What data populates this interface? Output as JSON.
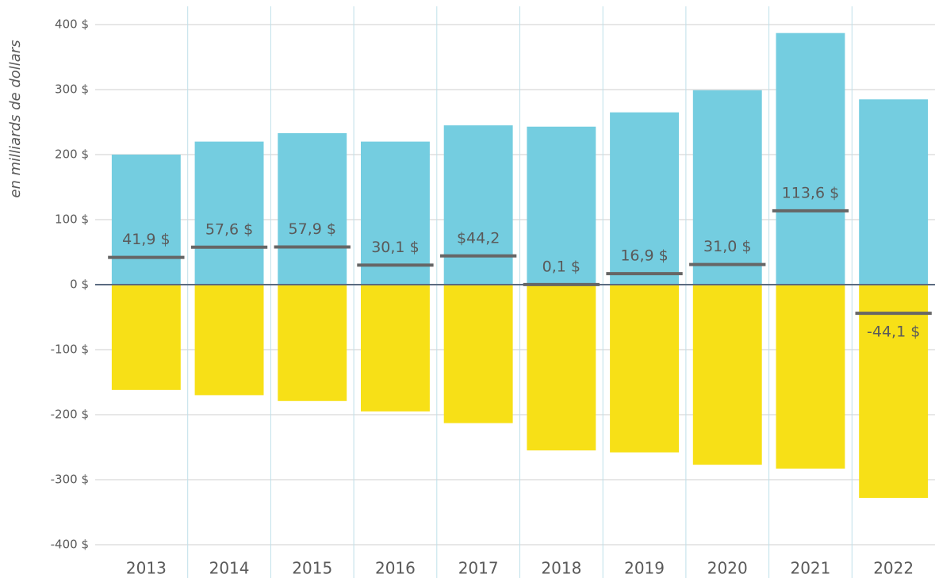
{
  "chart_data": {
    "type": "bar",
    "y_label": "en milliards de dollars",
    "categories": [
      "2013",
      "2014",
      "2015",
      "2016",
      "2017",
      "2018",
      "2019",
      "2020",
      "2021",
      "2022"
    ],
    "series": [
      {
        "color": "#74cde0",
        "values": [
          200,
          220,
          233,
          220,
          245,
          243,
          265,
          299,
          387,
          285
        ]
      },
      {
        "color": "#f7e017",
        "values": [
          -162,
          -170,
          -179,
          -195,
          -213,
          -255,
          -258,
          -277,
          -283,
          -328
        ]
      }
    ],
    "net": {
      "color": "#666666",
      "values": [
        41.9,
        57.6,
        57.9,
        30.1,
        44.2,
        0.1,
        16.9,
        31.0,
        113.6,
        -44.1
      ],
      "value_labels": [
        "41,9 $",
        "57,6 $",
        "57,9 $",
        "30,1 $",
        "$44,2",
        "0,1 $",
        "16,9 $",
        "31,0 $",
        "113,6 $",
        "-44,1 $"
      ]
    },
    "ylim": [
      -400,
      400
    ],
    "yticks": [
      {
        "value": -400,
        "label": "-400 $"
      },
      {
        "value": -300,
        "label": "-300 $"
      },
      {
        "value": -200,
        "label": "-200 $"
      },
      {
        "value": -100,
        "label": "-100 $"
      },
      {
        "value": 0,
        "label": "0 $"
      },
      {
        "value": 100,
        "label": "100 $"
      },
      {
        "value": 200,
        "label": "200 $"
      },
      {
        "value": 300,
        "label": "300 $"
      },
      {
        "value": 400,
        "label": "400 $"
      }
    ],
    "grid": true
  }
}
